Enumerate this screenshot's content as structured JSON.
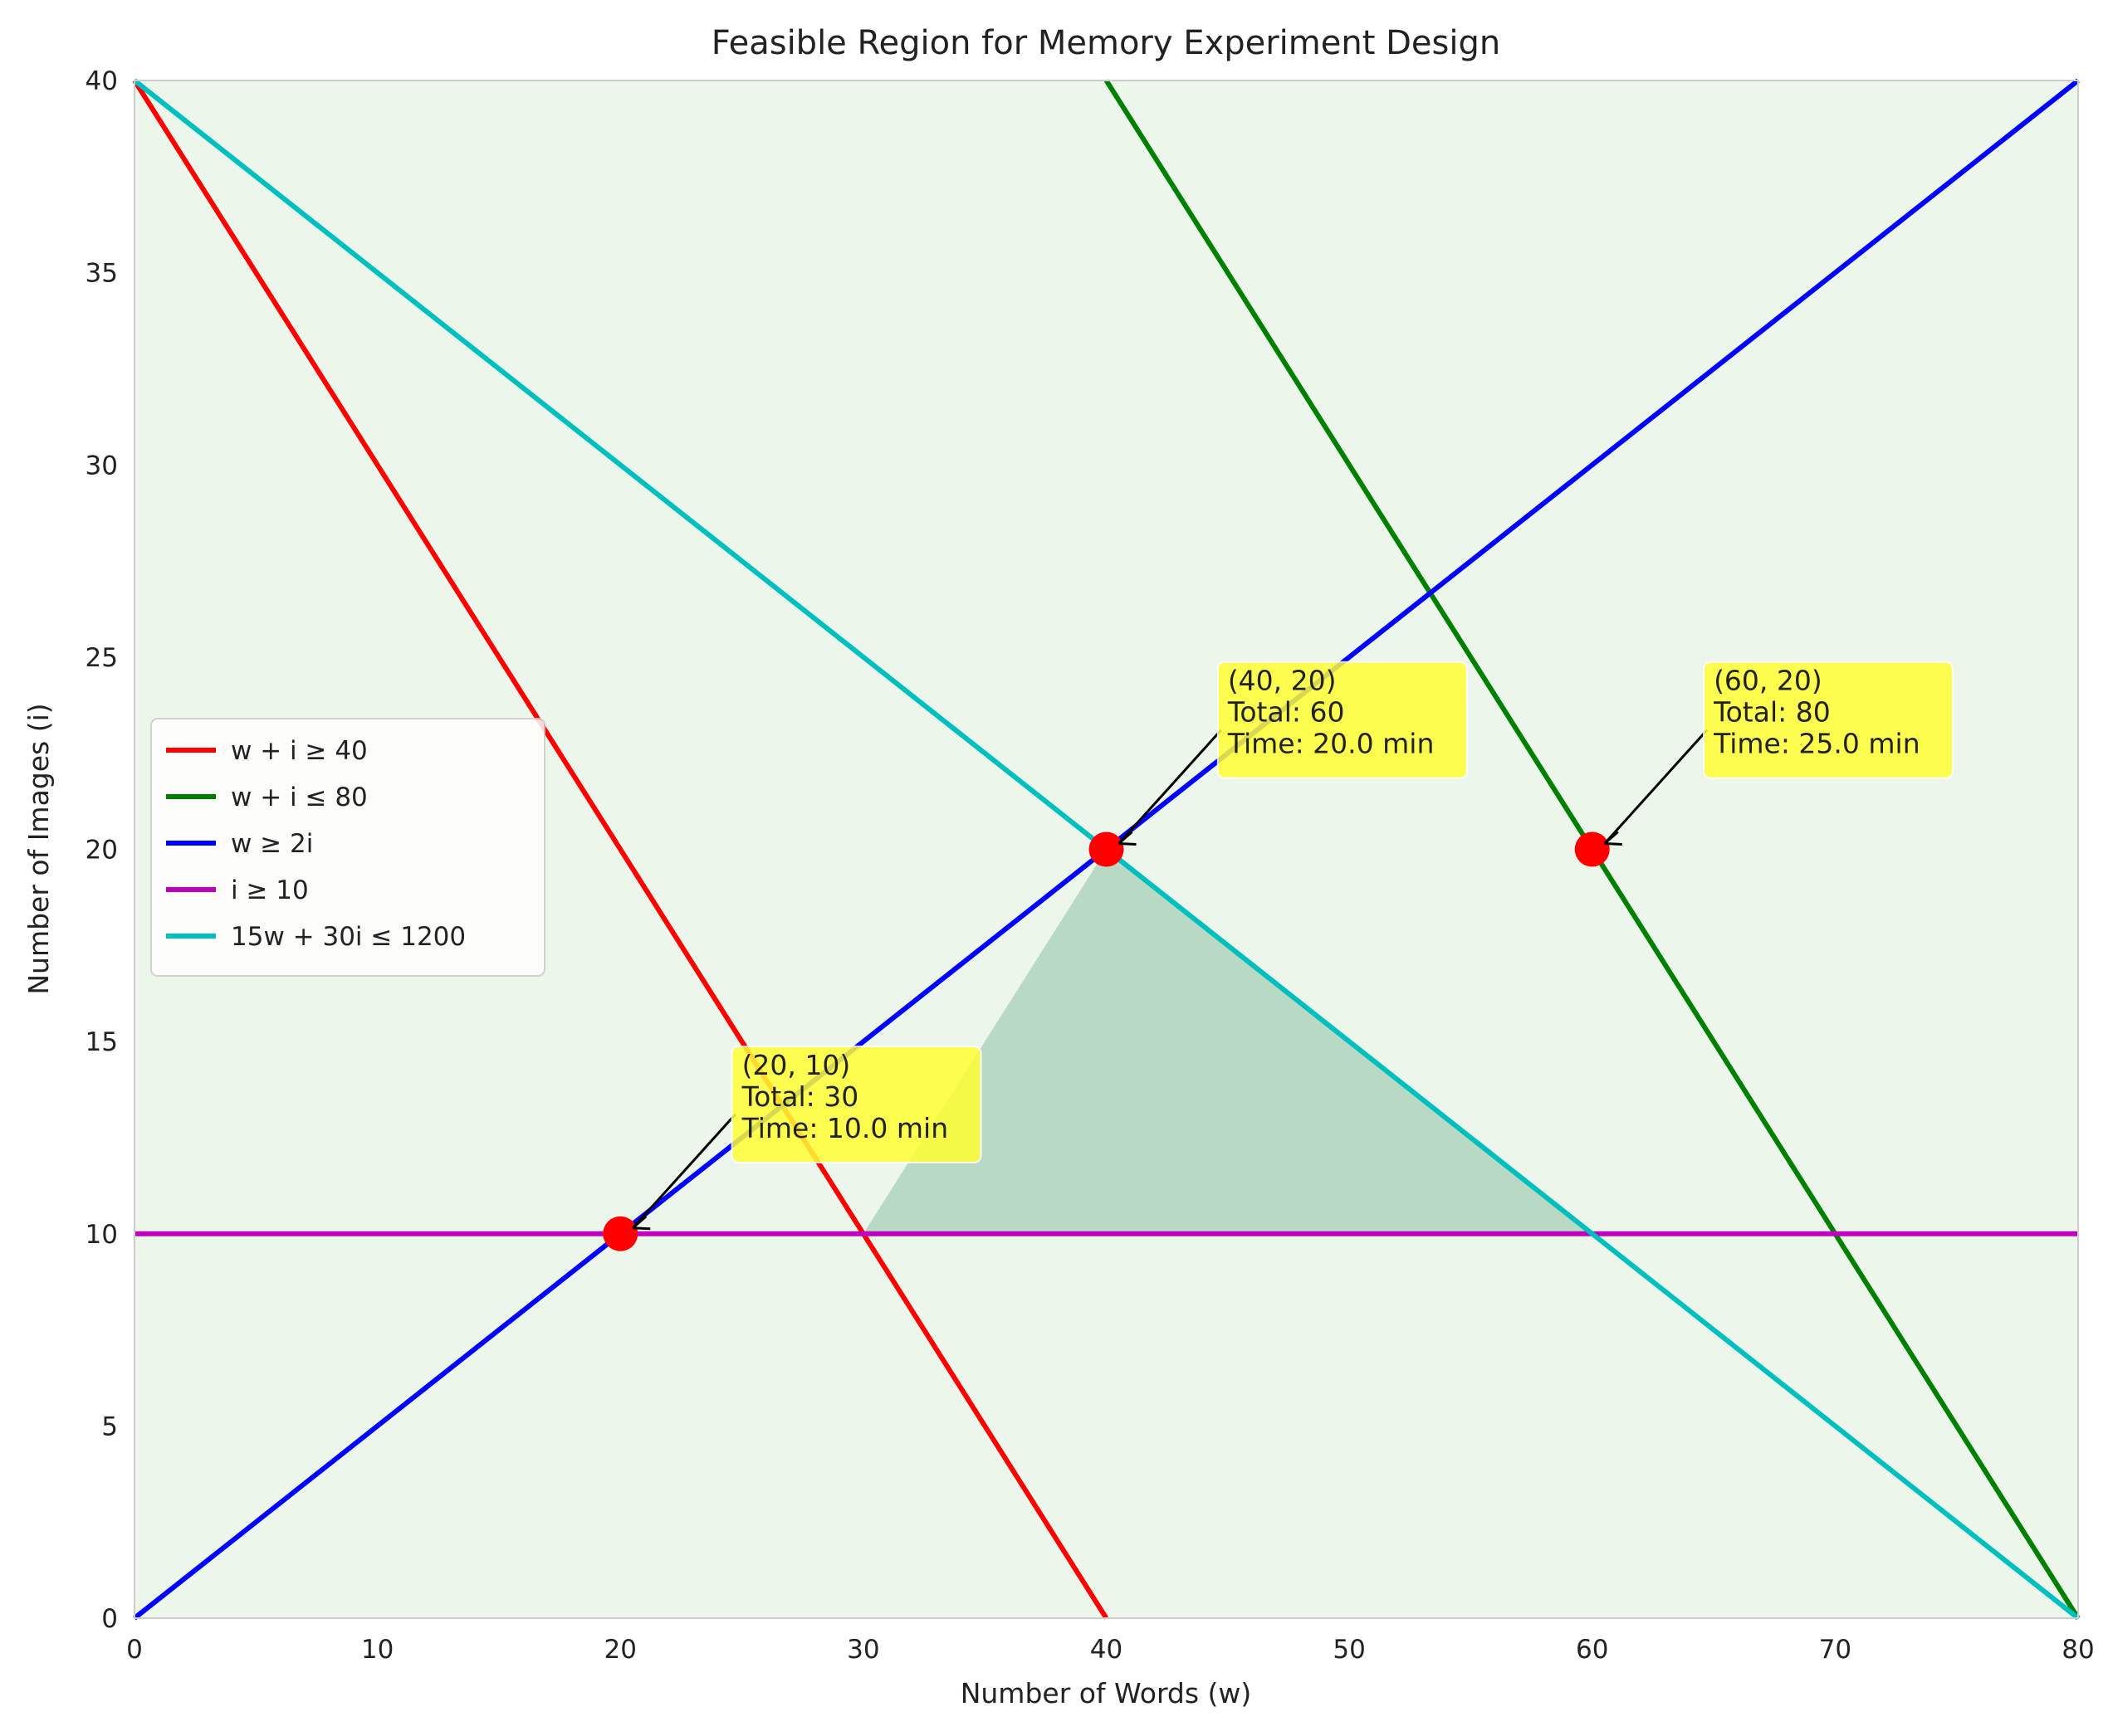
{
  "chart_data": {
    "type": "line",
    "title": "Feasible Region for Memory Experiment Design",
    "xlabel": "Number of Words (w)",
    "ylabel": "Number of Images (i)",
    "xlim": [
      0,
      80
    ],
    "ylim": [
      0,
      40
    ],
    "xticks": [
      0,
      10,
      20,
      30,
      40,
      50,
      60,
      70,
      80
    ],
    "yticks": [
      0,
      5,
      10,
      15,
      20,
      25,
      30,
      35,
      40
    ],
    "grid": false,
    "legend_position": "center-left",
    "background_color": "#ecf6ea",
    "feasible_region": {
      "color": "#b8d9c4",
      "polygon": [
        [
          30,
          10
        ],
        [
          40,
          20
        ],
        [
          60,
          10
        ]
      ]
    },
    "series": [
      {
        "name": "w + i ≥ 40",
        "color": "#ff0000",
        "x": [
          0,
          40
        ],
        "y": [
          40,
          0
        ]
      },
      {
        "name": "w + i ≤ 80",
        "color": "#008000",
        "x": [
          40,
          80
        ],
        "y": [
          40,
          0
        ]
      },
      {
        "name": "w ≥ 2i",
        "color": "#0000ff",
        "x": [
          0,
          80
        ],
        "y": [
          0,
          40
        ]
      },
      {
        "name": "i ≥ 10",
        "color": "#bf00bf",
        "x": [
          0,
          80
        ],
        "y": [
          10,
          10
        ]
      },
      {
        "name": "15w + 30i ≤ 1200",
        "color": "#00bfbf",
        "x": [
          0,
          80
        ],
        "y": [
          40,
          0
        ]
      }
    ],
    "points": [
      {
        "x": 20,
        "y": 10,
        "label": [
          "(20, 10)",
          "Total: 30",
          "Time: 10.0 min"
        ]
      },
      {
        "x": 40,
        "y": 20,
        "label": [
          "(40, 20)",
          "Total: 60",
          "Time: 20.0 min"
        ]
      },
      {
        "x": 60,
        "y": 20,
        "label": [
          "(60, 20)",
          "Total: 80",
          "Time: 25.0 min"
        ]
      }
    ],
    "point_color": "#ff0000",
    "annotation_color": "#ffff33"
  }
}
